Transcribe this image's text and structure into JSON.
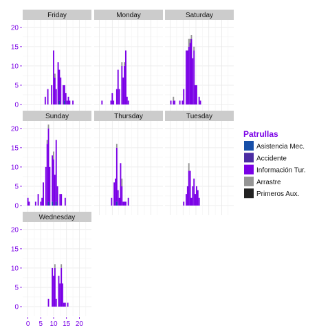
{
  "chart_data": {
    "type": "bar",
    "layout": "faceted histogram (stacked)",
    "title": "",
    "xlabel": "",
    "ylabel": "",
    "xlim": [
      -1,
      24
    ],
    "ylim": [
      0,
      22
    ],
    "x_ticks": [
      0,
      5,
      10,
      15,
      20
    ],
    "y_ticks": [
      0,
      5,
      10,
      15,
      20
    ],
    "grid": true,
    "legend": {
      "title": "Patrullas",
      "placement": "right",
      "entries": [
        {
          "name": "Asistencia Mec.",
          "color": "#174fa8"
        },
        {
          "name": "Accidente",
          "color": "#4b2ca3"
        },
        {
          "name": "Información Tur.",
          "color": "#7a00e6"
        },
        {
          "name": "Arrastre",
          "color": "#959595"
        },
        {
          "name": "Primeros Aux.",
          "color": "#222222"
        }
      ]
    },
    "facets": [
      {
        "label": "Friday",
        "x_axis": false,
        "y_axis": true,
        "bins": [
          {
            "x": 6.75,
            "v": [
              0,
              0,
              2,
              0,
              0
            ]
          },
          {
            "x": 7.75,
            "v": [
              0,
              0,
              4,
              0,
              0
            ]
          },
          {
            "x": 9.25,
            "v": [
              0,
              0,
              5,
              0,
              0
            ]
          },
          {
            "x": 10.0,
            "v": [
              0,
              0,
              14,
              0,
              0
            ]
          },
          {
            "x": 10.5,
            "v": [
              0,
              0,
              7,
              1,
              0
            ]
          },
          {
            "x": 11.0,
            "v": [
              0,
              0,
              4,
              0,
              0
            ]
          },
          {
            "x": 11.75,
            "v": [
              0,
              0,
              11,
              0,
              0
            ]
          },
          {
            "x": 12.25,
            "v": [
              1,
              0,
              8,
              0,
              0
            ]
          },
          {
            "x": 12.75,
            "v": [
              0,
              0,
              7,
              0,
              0
            ]
          },
          {
            "x": 13.75,
            "v": [
              0,
              0,
              5,
              0,
              0
            ]
          },
          {
            "x": 14.25,
            "v": [
              1,
              0,
              4,
              0,
              0
            ]
          },
          {
            "x": 14.75,
            "v": [
              0,
              0,
              3,
              0,
              0
            ]
          },
          {
            "x": 15.25,
            "v": [
              0,
              0,
              1,
              0,
              0
            ]
          },
          {
            "x": 15.75,
            "v": [
              0,
              0,
              2,
              0,
              0
            ]
          },
          {
            "x": 16.25,
            "v": [
              0,
              0,
              1,
              0,
              0
            ]
          },
          {
            "x": 17.5,
            "v": [
              0,
              0,
              1,
              0,
              0
            ]
          }
        ]
      },
      {
        "label": "Monday",
        "x_axis": false,
        "y_axis": false,
        "bins": [
          {
            "x": 1.0,
            "v": [
              0,
              0,
              1,
              0,
              0
            ]
          },
          {
            "x": 4.5,
            "v": [
              0,
              0,
              1,
              0,
              0
            ]
          },
          {
            "x": 5.0,
            "v": [
              0,
              0,
              3,
              0,
              0
            ]
          },
          {
            "x": 5.5,
            "v": [
              0,
              0,
              1,
              0,
              0
            ]
          },
          {
            "x": 6.75,
            "v": [
              0,
              0,
              4,
              0,
              0
            ]
          },
          {
            "x": 7.25,
            "v": [
              0,
              0,
              9,
              0,
              0
            ]
          },
          {
            "x": 7.75,
            "v": [
              0,
              0,
              4,
              0,
              0
            ]
          },
          {
            "x": 8.75,
            "v": [
              0,
              0,
              10,
              1,
              0
            ]
          },
          {
            "x": 9.25,
            "v": [
              0,
              0,
              7,
              0,
              0
            ]
          },
          {
            "x": 9.75,
            "v": [
              0,
              0,
              10,
              1,
              0
            ]
          },
          {
            "x": 10.25,
            "v": [
              0,
              0,
              14,
              0,
              0
            ]
          },
          {
            "x": 10.75,
            "v": [
              0,
              0,
              2,
              0,
              0
            ]
          },
          {
            "x": 11.25,
            "v": [
              0,
              0,
              1,
              0,
              0
            ]
          }
        ]
      },
      {
        "label": "Saturday",
        "x_axis": false,
        "y_axis": false,
        "bins": [
          {
            "x": 0.25,
            "v": [
              0,
              0,
              1,
              0,
              0
            ]
          },
          {
            "x": 1.25,
            "v": [
              0,
              0,
              1,
              1,
              0
            ]
          },
          {
            "x": 1.75,
            "v": [
              0,
              0,
              1,
              0,
              0
            ]
          },
          {
            "x": 3.75,
            "v": [
              0,
              0,
              1,
              0,
              0
            ]
          },
          {
            "x": 4.75,
            "v": [
              0,
              0,
              1,
              0,
              0
            ]
          },
          {
            "x": 5.25,
            "v": [
              0,
              0,
              4,
              0,
              0
            ]
          },
          {
            "x": 6.25,
            "v": [
              0,
              0,
              14,
              0,
              0
            ]
          },
          {
            "x": 6.75,
            "v": [
              0,
              0,
              14,
              0,
              0
            ]
          },
          {
            "x": 7.25,
            "v": [
              0,
              0,
              15,
              2,
              0
            ]
          },
          {
            "x": 7.75,
            "v": [
              0,
              0,
              16,
              1,
              0
            ]
          },
          {
            "x": 8.25,
            "v": [
              0,
              0,
              17,
              1,
              0
            ]
          },
          {
            "x": 8.75,
            "v": [
              0,
              0,
              12,
              0,
              0
            ]
          },
          {
            "x": 9.25,
            "v": [
              0,
              0,
              14,
              1,
              0
            ]
          },
          {
            "x": 9.75,
            "v": [
              0,
              0,
              5,
              0,
              0
            ]
          },
          {
            "x": 10.25,
            "v": [
              0,
              0,
              5,
              0,
              0
            ]
          },
          {
            "x": 11.25,
            "v": [
              0,
              0,
              2,
              0,
              0
            ]
          },
          {
            "x": 11.75,
            "v": [
              0,
              0,
              1,
              0,
              0
            ]
          }
        ]
      },
      {
        "label": "Sunday",
        "x_axis": false,
        "y_axis": true,
        "bins": [
          {
            "x": 0.0,
            "v": [
              0,
              0,
              2,
              0,
              0
            ]
          },
          {
            "x": 0.5,
            "v": [
              0,
              0,
              1,
              0,
              0
            ]
          },
          {
            "x": 3.0,
            "v": [
              0,
              0,
              1,
              0,
              0
            ]
          },
          {
            "x": 4.0,
            "v": [
              0,
              0,
              3,
              0,
              0
            ]
          },
          {
            "x": 5.0,
            "v": [
              0,
              0,
              1,
              0,
              0
            ]
          },
          {
            "x": 5.5,
            "v": [
              0,
              0,
              2,
              0,
              0
            ]
          },
          {
            "x": 6.0,
            "v": [
              0,
              0,
              6,
              0,
              0
            ]
          },
          {
            "x": 7.0,
            "v": [
              0,
              0,
              10,
              0,
              0
            ]
          },
          {
            "x": 7.5,
            "v": [
              0,
              0,
              16,
              1,
              0
            ]
          },
          {
            "x": 8.0,
            "v": [
              1,
              0,
              19,
              1,
              0
            ]
          },
          {
            "x": 8.5,
            "v": [
              0,
              0,
              10,
              0,
              0
            ]
          },
          {
            "x": 9.5,
            "v": [
              1,
              0,
              12,
              0,
              0
            ]
          },
          {
            "x": 10.0,
            "v": [
              0,
              0,
              12,
              2,
              0
            ]
          },
          {
            "x": 10.5,
            "v": [
              0,
              0,
              8,
              0,
              0
            ]
          },
          {
            "x": 11.0,
            "v": [
              1,
              0,
              16,
              0,
              0
            ]
          },
          {
            "x": 11.5,
            "v": [
              0,
              0,
              5,
              0,
              0
            ]
          },
          {
            "x": 12.5,
            "v": [
              0,
              0,
              3,
              0,
              0
            ]
          },
          {
            "x": 13.0,
            "v": [
              0,
              0,
              3,
              0,
              0
            ]
          },
          {
            "x": 14.5,
            "v": [
              0,
              0,
              2,
              0,
              0
            ]
          }
        ]
      },
      {
        "label": "Thursday",
        "x_axis": false,
        "y_axis": false,
        "bins": [
          {
            "x": 4.75,
            "v": [
              0,
              0,
              2,
              0,
              0
            ]
          },
          {
            "x": 5.75,
            "v": [
              0,
              0,
              6,
              0,
              0
            ]
          },
          {
            "x": 6.25,
            "v": [
              0,
              0,
              7,
              0,
              0
            ]
          },
          {
            "x": 6.75,
            "v": [
              1,
              0,
              14,
              1,
              0
            ]
          },
          {
            "x": 7.25,
            "v": [
              0,
              0,
              4,
              0,
              0
            ]
          },
          {
            "x": 7.75,
            "v": [
              0,
              0,
              2,
              0,
              0
            ]
          },
          {
            "x": 8.25,
            "v": [
              0,
              0,
              11,
              0,
              0
            ]
          },
          {
            "x": 8.75,
            "v": [
              0,
              0,
              5,
              2,
              0
            ]
          },
          {
            "x": 9.25,
            "v": [
              0,
              0,
              1,
              0,
              0
            ]
          },
          {
            "x": 9.75,
            "v": [
              0,
              0,
              1,
              0,
              0
            ]
          },
          {
            "x": 10.25,
            "v": [
              0,
              0,
              1,
              0,
              0
            ]
          },
          {
            "x": 11.25,
            "v": [
              0,
              0,
              2,
              0,
              0
            ]
          }
        ]
      },
      {
        "label": "Tuesday",
        "x_axis": false,
        "y_axis": false,
        "bins": [
          {
            "x": 5.25,
            "v": [
              0,
              0,
              1,
              0,
              0
            ]
          },
          {
            "x": 6.25,
            "v": [
              0,
              0,
              3,
              0,
              0
            ]
          },
          {
            "x": 6.75,
            "v": [
              0,
              0,
              5,
              0,
              0
            ]
          },
          {
            "x": 7.25,
            "v": [
              0,
              0,
              9,
              2,
              0
            ]
          },
          {
            "x": 7.75,
            "v": [
              0,
              0,
              9,
              0,
              0
            ]
          },
          {
            "x": 8.25,
            "v": [
              0,
              0,
              2,
              0,
              0
            ]
          },
          {
            "x": 8.75,
            "v": [
              0,
              0,
              5,
              0,
              0
            ]
          },
          {
            "x": 9.25,
            "v": [
              0,
              0,
              7,
              0,
              0
            ]
          },
          {
            "x": 9.75,
            "v": [
              0,
              0,
              3,
              0,
              0
            ]
          },
          {
            "x": 10.25,
            "v": [
              0,
              0,
              5,
              0,
              0
            ]
          },
          {
            "x": 10.75,
            "v": [
              0,
              0,
              4,
              0,
              0
            ]
          },
          {
            "x": 11.25,
            "v": [
              0,
              0,
              2,
              0,
              0
            ]
          }
        ]
      },
      {
        "label": "Wednesday",
        "x_axis": true,
        "y_axis": true,
        "bins": [
          {
            "x": 8.0,
            "v": [
              0,
              0,
              2,
              0,
              0
            ]
          },
          {
            "x": 9.5,
            "v": [
              0,
              0,
              10,
              0,
              0
            ]
          },
          {
            "x": 10.0,
            "v": [
              0,
              0,
              8,
              0,
              0
            ]
          },
          {
            "x": 10.5,
            "v": [
              0,
              0,
              10,
              1,
              0
            ]
          },
          {
            "x": 11.0,
            "v": [
              0,
              0,
              2,
              0,
              0
            ]
          },
          {
            "x": 12.0,
            "v": [
              0,
              0,
              8,
              0,
              0
            ]
          },
          {
            "x": 12.5,
            "v": [
              0,
              0,
              6,
              0,
              0
            ]
          },
          {
            "x": 13.0,
            "v": [
              0,
              0,
              10,
              1,
              0
            ]
          },
          {
            "x": 13.5,
            "v": [
              0,
              0,
              6,
              0,
              0
            ]
          },
          {
            "x": 14.0,
            "v": [
              0,
              0,
              1,
              0,
              0
            ]
          },
          {
            "x": 14.5,
            "v": [
              0,
              0,
              1,
              0,
              0
            ]
          },
          {
            "x": 15.5,
            "v": [
              0,
              0,
              1,
              0,
              0
            ]
          }
        ]
      }
    ]
  }
}
